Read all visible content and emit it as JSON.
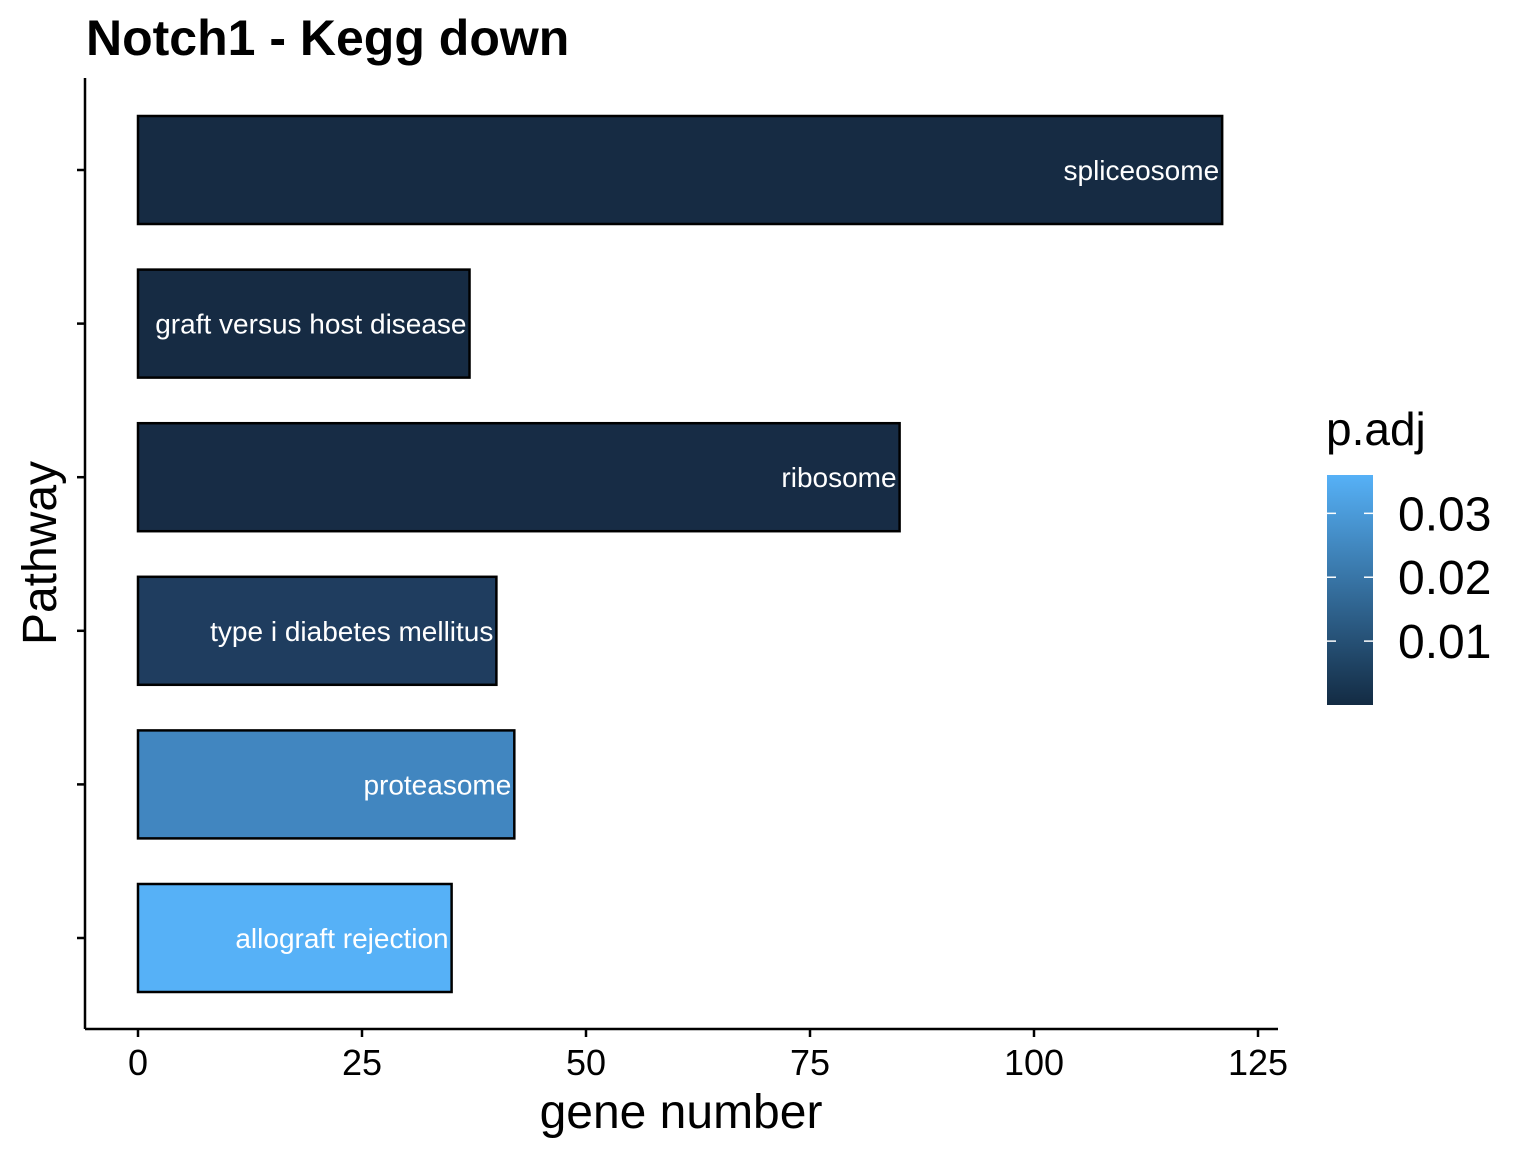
{
  "chart_data": {
    "type": "bar",
    "orientation": "horizontal",
    "title": "Notch1 - Kegg down",
    "xlabel": "gene number",
    "ylabel": "Pathway",
    "xlim": [
      -6,
      127
    ],
    "xticks": [
      "0",
      "25",
      "50",
      "75",
      "100",
      "125"
    ],
    "xtick_values": [
      0,
      25,
      50,
      75,
      100,
      125
    ],
    "categories": [
      "spliceosome",
      "graft versus host disease",
      "ribosome",
      "type i diabetes mellitus",
      "proteasome",
      "allograft rejection"
    ],
    "values": [
      121,
      37,
      85,
      40,
      42,
      35
    ],
    "p_adj": [
      0.0,
      0.0001,
      0.0002,
      0.005,
      0.024,
      0.036
    ],
    "bar_colors": [
      "#162b43",
      "#162b43",
      "#172c45",
      "#1f3d5f",
      "#4186c0",
      "#56b1f7"
    ],
    "legend": {
      "title": "p.adj",
      "labels": [
        "0.03",
        "0.02",
        "0.01"
      ],
      "label_values": [
        0.03,
        0.02,
        0.01
      ],
      "range": [
        0.0,
        0.036
      ],
      "color_low": "#132b43",
      "color_high": "#56b1f7",
      "placement": "right"
    },
    "grid": false
  }
}
